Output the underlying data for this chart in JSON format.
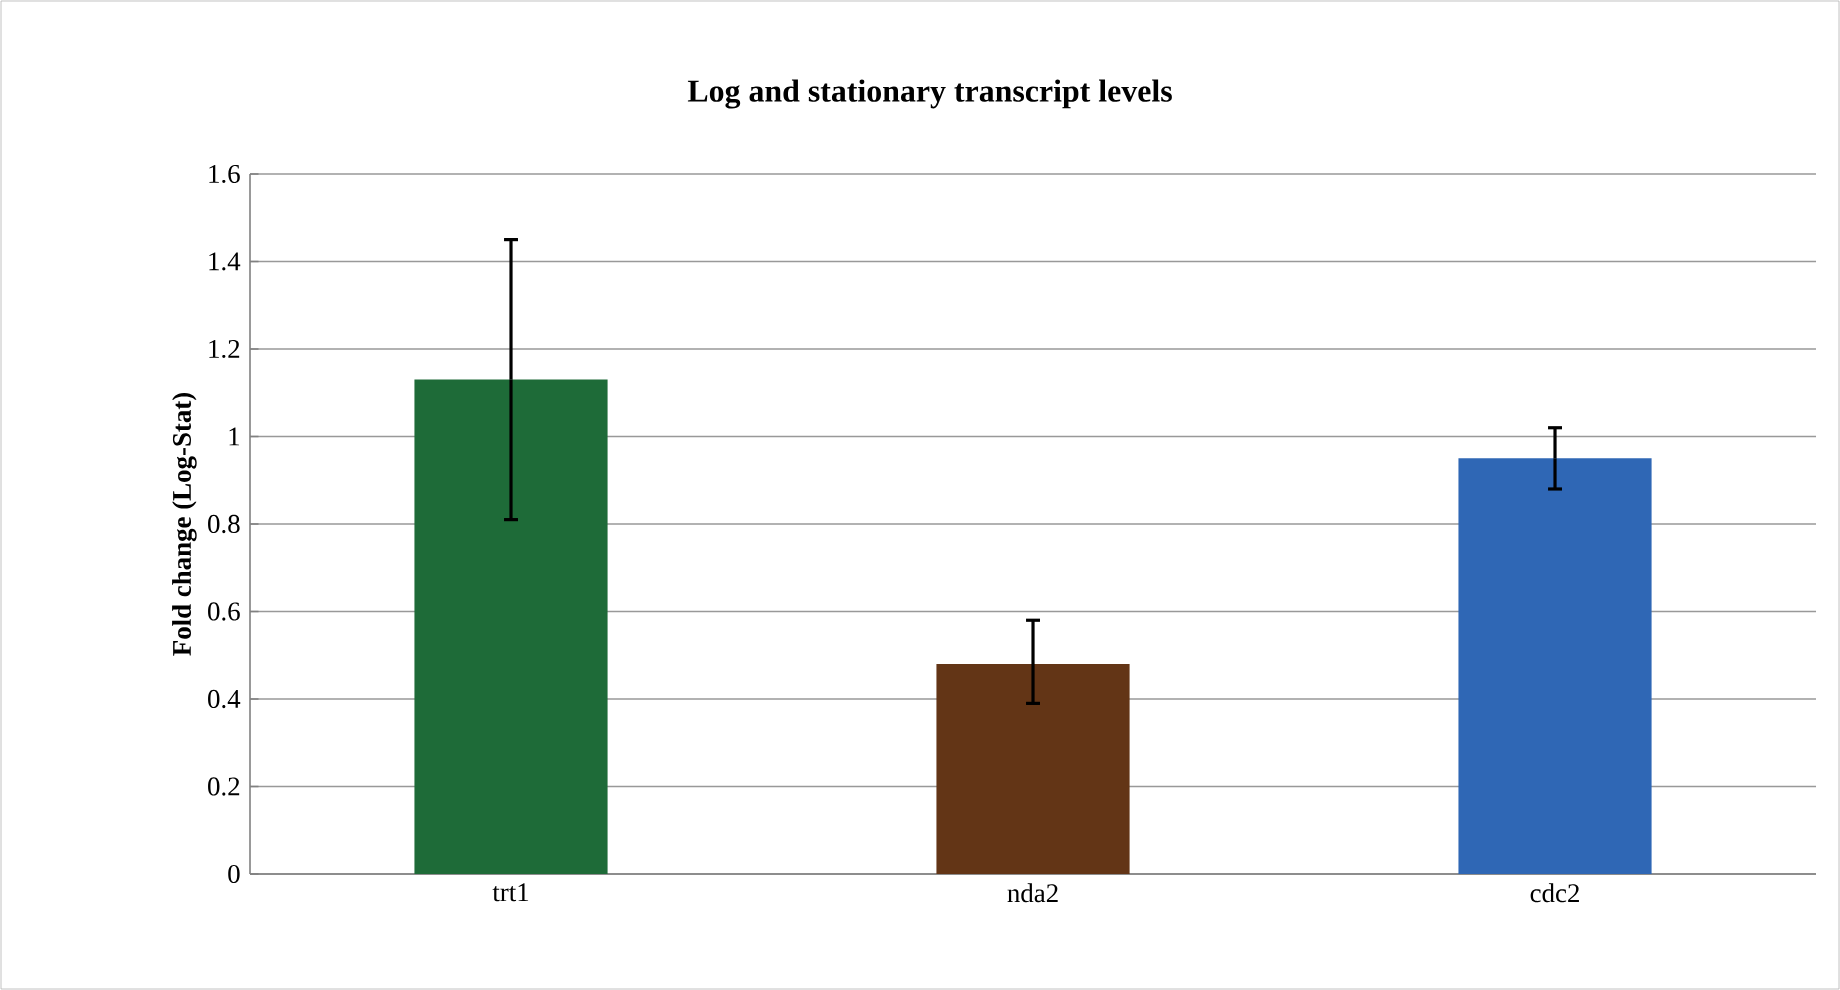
{
  "chart_data": {
    "type": "bar",
    "title": "Log and stationary transcript levels",
    "ylabel": "Fold change (Log-Stat)",
    "categories": [
      "trt1",
      "nda2",
      "cdc2"
    ],
    "values": [
      1.13,
      0.48,
      0.95
    ],
    "errors": [
      [
        0.81,
        1.45
      ],
      [
        0.39,
        0.58
      ],
      [
        0.88,
        1.02
      ]
    ],
    "colors": [
      "#1e6b38",
      "#633516",
      "#2f67b5"
    ],
    "ylim": [
      0,
      1.6
    ],
    "yticks": [
      0,
      0.2,
      0.4,
      0.6,
      0.8,
      1,
      1.2,
      1.4,
      1.6
    ],
    "grid": "y"
  }
}
